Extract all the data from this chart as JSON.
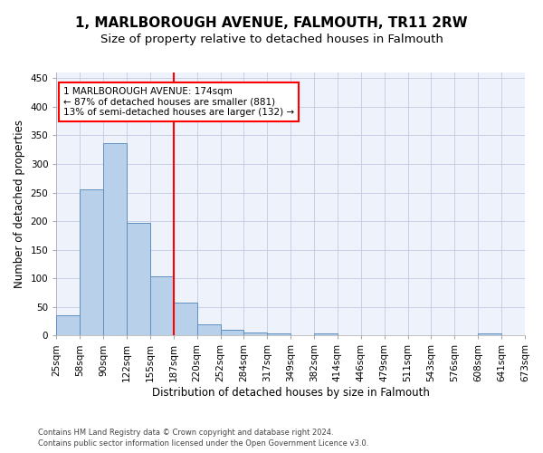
{
  "title": "1, MARLBOROUGH AVENUE, FALMOUTH, TR11 2RW",
  "subtitle": "Size of property relative to detached houses in Falmouth",
  "xlabel": "Distribution of detached houses by size in Falmouth",
  "ylabel": "Number of detached properties",
  "bar_values": [
    35,
    256,
    336,
    197,
    104,
    57,
    19,
    10,
    6,
    4,
    0,
    4,
    0,
    0,
    0,
    0,
    0,
    0,
    4,
    0
  ],
  "bin_labels": [
    "25sqm",
    "58sqm",
    "90sqm",
    "122sqm",
    "155sqm",
    "187sqm",
    "220sqm",
    "252sqm",
    "284sqm",
    "317sqm",
    "349sqm",
    "382sqm",
    "414sqm",
    "446sqm",
    "479sqm",
    "511sqm",
    "543sqm",
    "576sqm",
    "608sqm",
    "641sqm",
    "673sqm"
  ],
  "bar_color": "#b8d0ea",
  "bar_edge_color": "#6090c0",
  "vline_color": "red",
  "vline_x": 5.0,
  "annotation_line1": "1 MARLBOROUGH AVENUE: 174sqm",
  "annotation_line2": "← 87% of detached houses are smaller (881)",
  "annotation_line3": "13% of semi-detached houses are larger (132) →",
  "annotation_box_color": "white",
  "annotation_box_edge": "red",
  "ylim": [
    0,
    460
  ],
  "yticks": [
    0,
    50,
    100,
    150,
    200,
    250,
    300,
    350,
    400,
    450
  ],
  "background_color": "#eef2fb",
  "grid_color": "#c8cfe8",
  "title_fontsize": 11,
  "subtitle_fontsize": 9.5,
  "label_fontsize": 8.5,
  "tick_fontsize": 7.5,
  "footer_line1": "Contains HM Land Registry data © Crown copyright and database right 2024.",
  "footer_line2": "Contains public sector information licensed under the Open Government Licence v3.0."
}
